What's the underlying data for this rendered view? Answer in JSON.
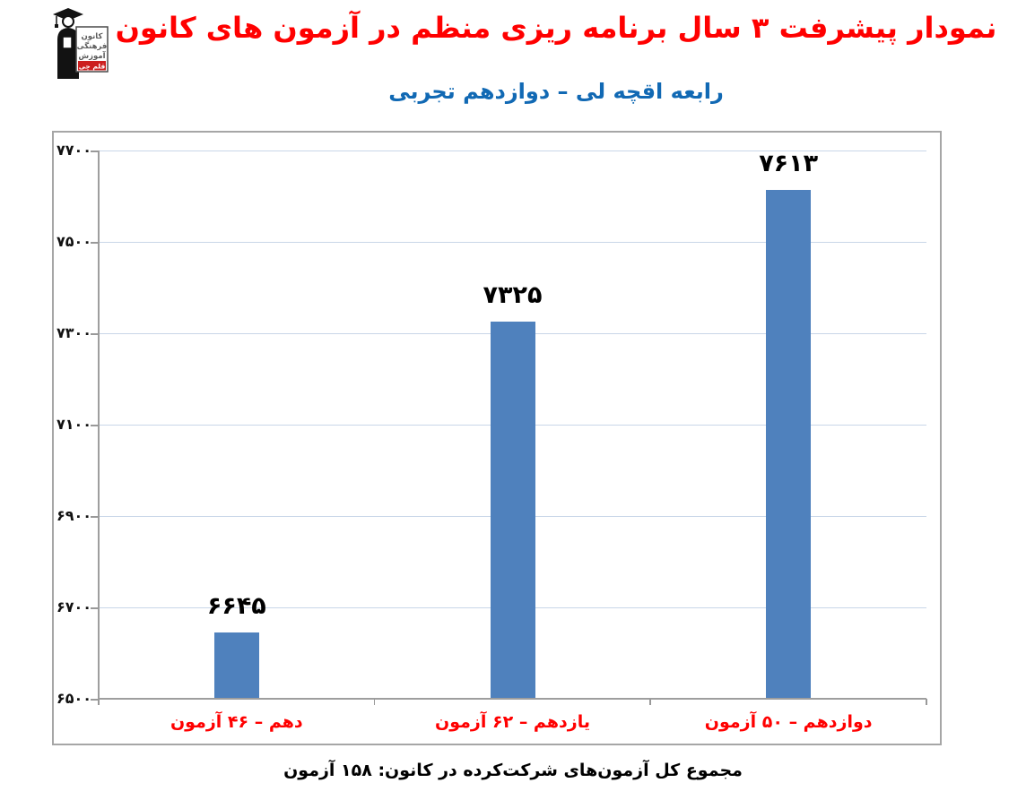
{
  "header": {
    "title": "نمودار پیشرفت ۳ سال برنامه ریزی منظم در آزمون های کانون",
    "title_color": "#ff0000",
    "subtitle": "رابعه اقچه لی – دوازدهم تجربی",
    "subtitle_color": "#1169b4",
    "logo": {
      "sign_lines": [
        "کانون",
        "فرهنگی",
        "آموزش"
      ],
      "badge": "قلم چی",
      "badge_color": "#cc1f1f"
    }
  },
  "chart_data": {
    "type": "bar",
    "title": "نمودار پیشرفت ۳ سال برنامه ریزی منظم در آزمون های کانون",
    "subtitle": "رابعه اقچه لی – دوازدهم تجربی",
    "categories": [
      "دهم – ۴۶ آزمون",
      "یازدهم – ۶۲ آزمون",
      "دوازدهم – ۵۰ آزمون"
    ],
    "values": [
      6645,
      7325,
      7613
    ],
    "value_labels": [
      "۶۶۴۵",
      "۷۳۲۵",
      "۷۶۱۳"
    ],
    "y_ticks": [
      6500,
      6700,
      6900,
      7100,
      7300,
      7500,
      7700
    ],
    "y_tick_labels": [
      "۶۵۰۰",
      "۶۷۰۰",
      "۶۹۰۰",
      "۷۱۰۰",
      "۷۳۰۰",
      "۷۵۰۰",
      "۷۷۰۰"
    ],
    "ylim": [
      6500,
      7700
    ],
    "grid": true,
    "legend": "none",
    "bar_color": "#4f81bd",
    "gridline_color": "#c9d6e8",
    "axis_color": "#9e9e9e",
    "category_label_color": "#ff0000",
    "value_label_color": "#000000",
    "xlabel": "",
    "ylabel": ""
  },
  "footer": {
    "summary": "مجموع کل آزمون‌های شرکت‌کرده در کانون: ۱۵۸ آزمون"
  }
}
